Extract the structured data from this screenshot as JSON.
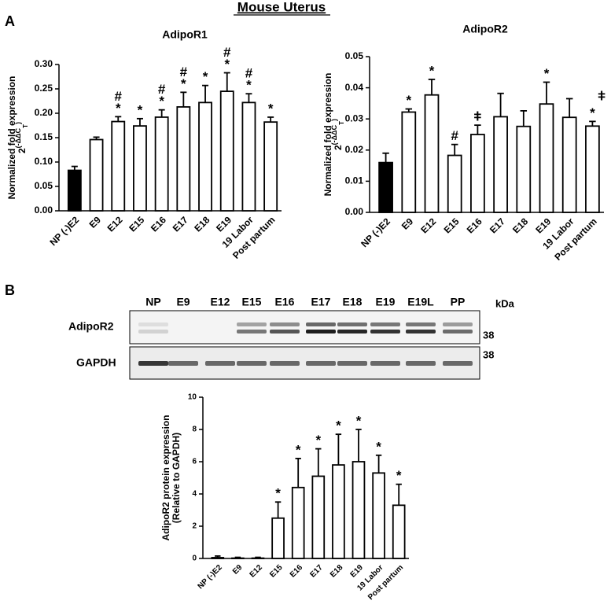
{
  "figure": {
    "title": "Mouse Uterus",
    "panel_a": "A",
    "panel_b": "B"
  },
  "blot": {
    "lanes": [
      "NP",
      "E9",
      "E12",
      "E15",
      "E16",
      "E17",
      "E18",
      "E19",
      "E19L",
      "PP"
    ],
    "unit": "kDa",
    "rows": [
      "AdipoR2",
      "GAPDH"
    ],
    "size_markers": [
      "38",
      "38"
    ]
  },
  "chart_data": [
    {
      "type": "bar",
      "title": "AdipoR1",
      "ylabel": "Normalized fold expression",
      "ylabel_formula": {
        "base": "2",
        "sup": "(-ΔΔC",
        "sub": "T",
        "close": ")"
      },
      "categories": [
        "NP (-)E2",
        "E9",
        "E12",
        "E15",
        "E16",
        "E17",
        "E18",
        "E19",
        "19 Labor",
        "Post partum"
      ],
      "values": [
        0.083,
        0.146,
        0.183,
        0.174,
        0.192,
        0.213,
        0.222,
        0.245,
        0.222,
        0.182
      ],
      "errors": [
        0.008,
        0.005,
        0.01,
        0.015,
        0.015,
        0.03,
        0.035,
        0.038,
        0.018,
        0.01
      ],
      "bar_colors": [
        "#000000",
        "#ffffff",
        "#ffffff",
        "#ffffff",
        "#ffffff",
        "#ffffff",
        "#ffffff",
        "#ffffff",
        "#ffffff",
        "#ffffff"
      ],
      "markers": [
        null,
        null,
        [
          "#",
          "*"
        ],
        [
          "*"
        ],
        [
          "#",
          "*"
        ],
        [
          "#",
          "*"
        ],
        [
          "*"
        ],
        [
          "#",
          "*"
        ],
        [
          "#",
          "*"
        ],
        [
          "*"
        ]
      ],
      "ylim": [
        0,
        0.3
      ],
      "yticks": [
        {
          "value": 0,
          "label": "0.00"
        },
        {
          "value": 0.05,
          "label": "0.05"
        },
        {
          "value": 0.1,
          "label": "0.10"
        },
        {
          "value": 0.15,
          "label": "0.15"
        },
        {
          "value": 0.2,
          "label": "0.20"
        },
        {
          "value": 0.25,
          "label": "0.25"
        },
        {
          "value": 0.3,
          "label": "0.30"
        }
      ]
    },
    {
      "type": "bar",
      "title": "AdipoR2",
      "ylabel": "Normalized fold expression",
      "ylabel_formula": {
        "base": "2",
        "sup": "(-ΔΔC",
        "sub": "T",
        "close": ")"
      },
      "annotation": "ǂ",
      "categories": [
        "NP (-)E2",
        "E9",
        "E12",
        "E15",
        "E16",
        "E17",
        "E18",
        "E19",
        "19 Labor",
        "Post partum"
      ],
      "values": [
        0.016,
        0.0322,
        0.0377,
        0.0183,
        0.025,
        0.0307,
        0.0276,
        0.0348,
        0.0305,
        0.0277
      ],
      "errors": [
        0.003,
        0.001,
        0.005,
        0.0035,
        0.003,
        0.0075,
        0.005,
        0.007,
        0.006,
        0.0015
      ],
      "bar_colors": [
        "#000000",
        "#ffffff",
        "#ffffff",
        "#ffffff",
        "#ffffff",
        "#ffffff",
        "#ffffff",
        "#ffffff",
        "#ffffff",
        "#ffffff"
      ],
      "markers": [
        null,
        [
          "*"
        ],
        [
          "*"
        ],
        [
          "#"
        ],
        [
          "ǂ"
        ],
        null,
        null,
        [
          "*"
        ],
        null,
        [
          "*"
        ]
      ],
      "ylim": [
        0,
        0.05
      ],
      "yticks": [
        {
          "value": 0,
          "label": "0.00"
        },
        {
          "value": 0.01,
          "label": "0.01"
        },
        {
          "value": 0.02,
          "label": "0.02"
        },
        {
          "value": 0.03,
          "label": "0.03"
        },
        {
          "value": 0.04,
          "label": "0.04"
        },
        {
          "value": 0.05,
          "label": "0.05"
        }
      ]
    },
    {
      "type": "bar",
      "ylabel": "AdipoR2 protein expression",
      "ylabel2": "(Relative to GAPDH)",
      "categories": [
        "NP (-)E2",
        "E9",
        "E12",
        "E15",
        "E16",
        "E17",
        "E18",
        "E19",
        "19 Labor",
        "Post partum"
      ],
      "values": [
        0.05,
        0.02,
        0.02,
        2.5,
        4.4,
        5.1,
        5.8,
        6.0,
        5.3,
        3.3
      ],
      "errors": [
        0.1,
        0.05,
        0.05,
        1.0,
        1.8,
        1.7,
        1.9,
        2.0,
        1.1,
        1.3
      ],
      "bar_colors": [
        "#ffffff",
        "#ffffff",
        "#ffffff",
        "#ffffff",
        "#ffffff",
        "#ffffff",
        "#ffffff",
        "#ffffff",
        "#ffffff",
        "#ffffff"
      ],
      "markers": [
        null,
        null,
        null,
        [
          "*"
        ],
        [
          "*"
        ],
        [
          "*"
        ],
        [
          "*"
        ],
        [
          "*"
        ],
        [
          "*"
        ],
        [
          "*"
        ]
      ],
      "ylim": [
        0,
        10
      ],
      "yticks": [
        0,
        2,
        4,
        6,
        8,
        10
      ]
    }
  ]
}
